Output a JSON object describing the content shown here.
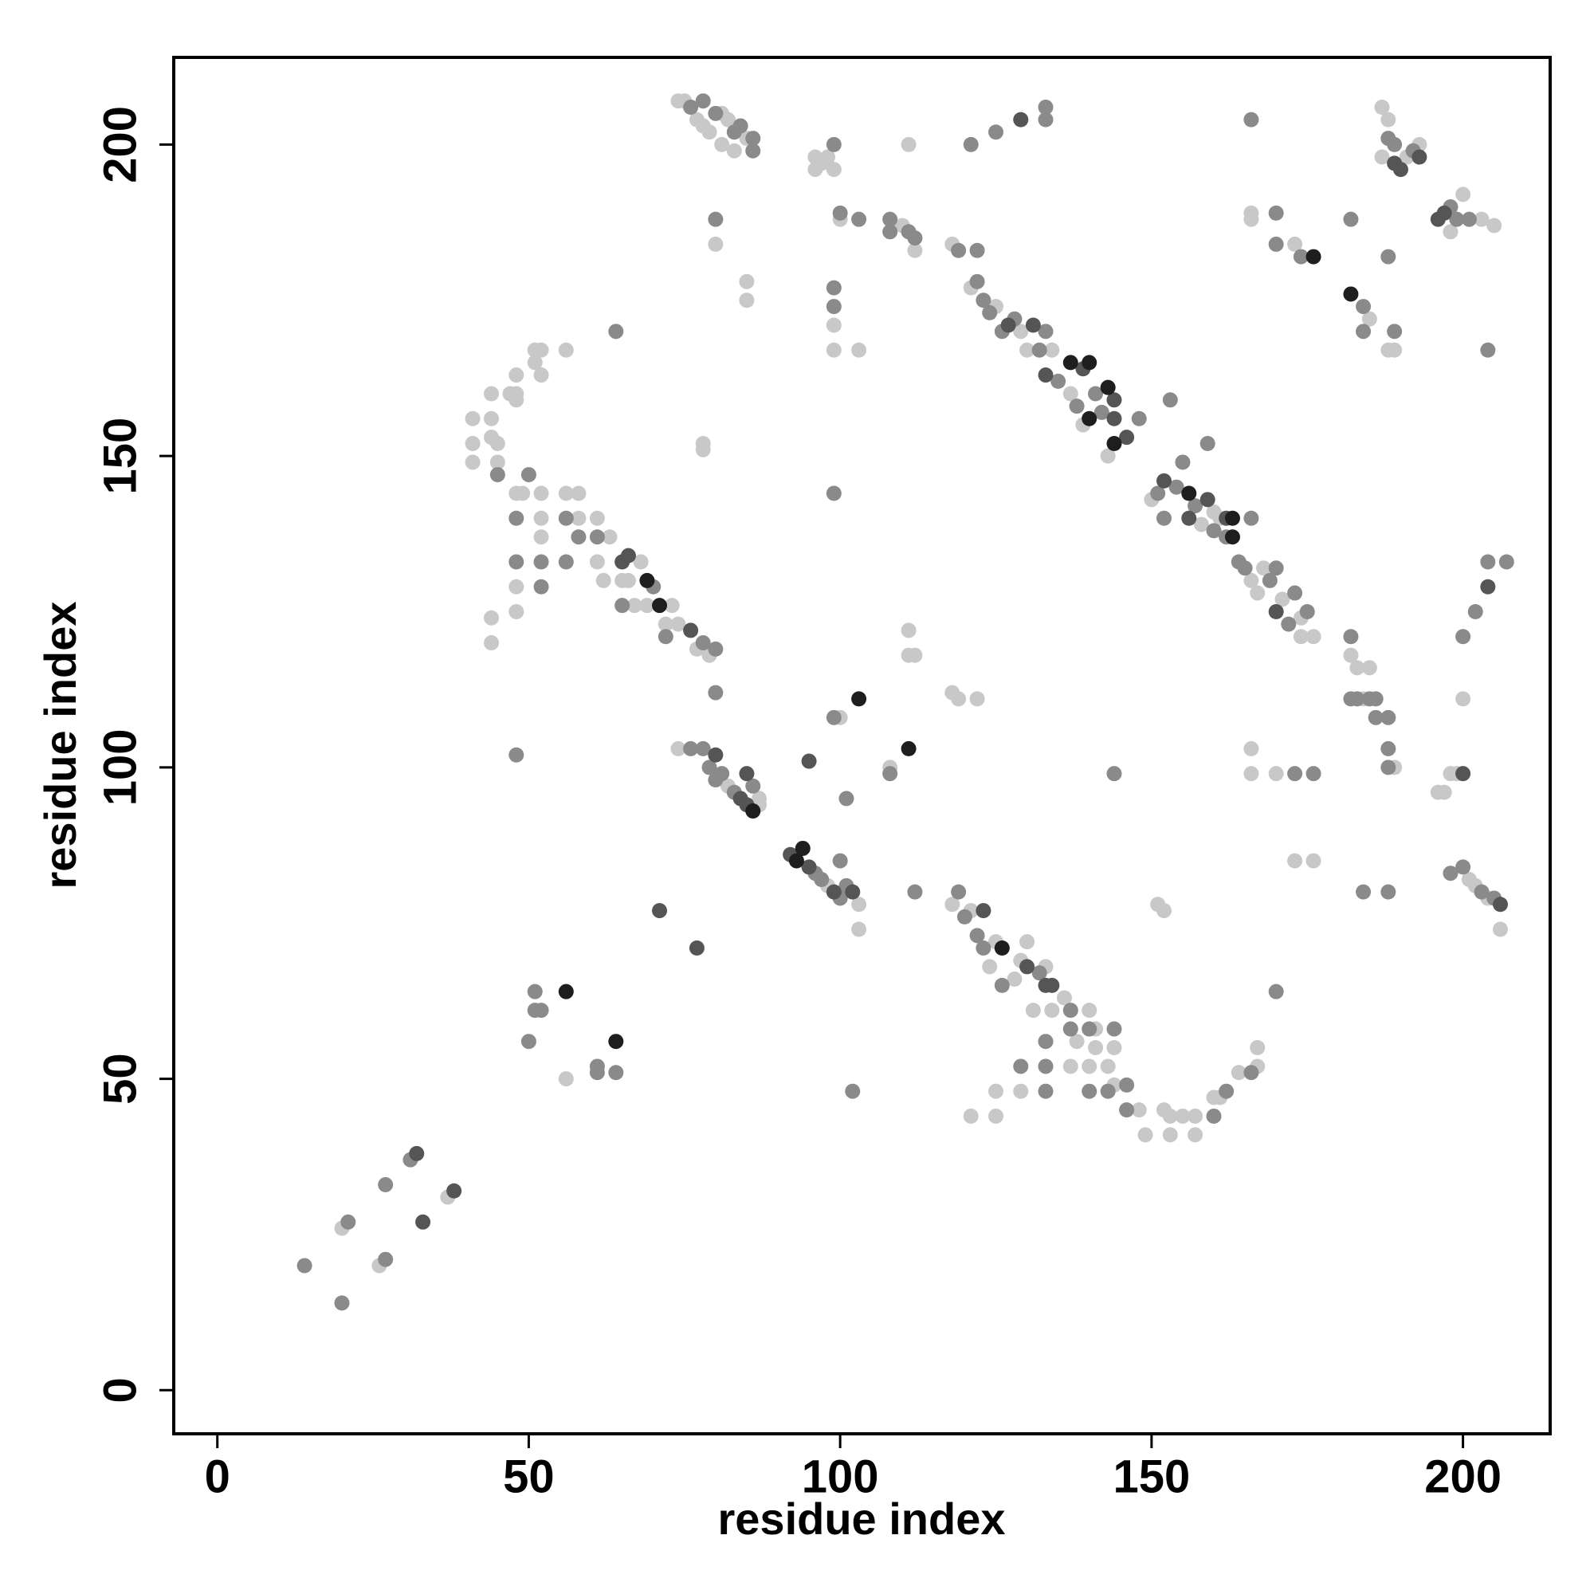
{
  "chart_data": {
    "type": "scatter",
    "x_label": "residue index",
    "y_label": "residue index",
    "xlim": [
      -7,
      214
    ],
    "ylim": [
      -7,
      214
    ],
    "xticks": [
      0,
      50,
      100,
      150,
      200
    ],
    "yticks": [
      0,
      50,
      100,
      150,
      200
    ],
    "series": [
      {
        "color": "#c8c8c8",
        "x": [
          20,
          26,
          37,
          56,
          74,
          82,
          87,
          87,
          98,
          103,
          103,
          100,
          108,
          118,
          121,
          124,
          125,
          128,
          129,
          130,
          131,
          133,
          134,
          136,
          138,
          140,
          141,
          141,
          143,
          144,
          144,
          148,
          149,
          152,
          153,
          153,
          155,
          157,
          157,
          160,
          161,
          164,
          167,
          167,
          121,
          125,
          125,
          129,
          137,
          140,
          151,
          152,
          173,
          176,
          196,
          197,
          198,
          199,
          200,
          201,
          202,
          204,
          206,
          166,
          166,
          170,
          48,
          49,
          48,
          48,
          52,
          52,
          52,
          56,
          58,
          58,
          61,
          61,
          62,
          63,
          65,
          66,
          67,
          68,
          69,
          72,
          73,
          74,
          77,
          79,
          44,
          44,
          41,
          41,
          41,
          44,
          44,
          44,
          45,
          45,
          47,
          48,
          48,
          48,
          51,
          51,
          52,
          52,
          56,
          78,
          78,
          74,
          75,
          77,
          78,
          79,
          81,
          81,
          82,
          83,
          85,
          80,
          85,
          85,
          96,
          96,
          97,
          98,
          99,
          100,
          99,
          99,
          103,
          111,
          110,
          112,
          118,
          121,
          125,
          129,
          130,
          134,
          137,
          139,
          143,
          150,
          158,
          160,
          161,
          166,
          167,
          168,
          171,
          174,
          174,
          176,
          182,
          183,
          185,
          184,
          189,
          166,
          166,
          173,
          185,
          188,
          189,
          187,
          188,
          191,
          193,
          187,
          198,
          200,
          203,
          205,
          111,
          111,
          112,
          118,
          119,
          122
        ],
        "y": [
          26,
          20,
          31,
          50,
          103,
          97,
          94,
          95,
          81,
          78,
          74,
          108,
          100,
          78,
          77,
          68,
          72,
          66,
          69,
          72,
          61,
          68,
          61,
          63,
          56,
          61,
          58,
          55,
          52,
          55,
          49,
          45,
          41,
          45,
          41,
          44,
          44,
          41,
          44,
          47,
          47,
          51,
          52,
          55,
          44,
          44,
          48,
          48,
          52,
          52,
          78,
          77,
          85,
          85,
          96,
          96,
          99,
          99,
          111,
          82,
          81,
          79,
          74,
          99,
          103,
          99,
          144,
          144,
          129,
          125,
          144,
          140,
          137,
          144,
          144,
          140,
          140,
          133,
          130,
          137,
          130,
          130,
          126,
          133,
          126,
          123,
          126,
          123,
          119,
          118,
          124,
          120,
          149,
          152,
          156,
          156,
          160,
          153,
          152,
          149,
          160,
          160,
          159,
          163,
          165,
          167,
          167,
          163,
          167,
          152,
          151,
          207,
          207,
          204,
          203,
          202,
          205,
          200,
          204,
          199,
          201,
          184,
          178,
          175,
          196,
          198,
          197,
          198,
          196,
          188,
          171,
          167,
          167,
          200,
          187,
          183,
          184,
          177,
          174,
          170,
          167,
          167,
          160,
          155,
          150,
          143,
          139,
          141,
          140,
          130,
          128,
          132,
          127,
          124,
          121,
          121,
          118,
          116,
          116,
          111,
          100,
          188,
          189,
          184,
          172,
          167,
          167,
          206,
          204,
          198,
          200,
          198,
          186,
          192,
          188,
          187,
          122,
          118,
          118,
          112,
          111,
          111
        ]
      },
      {
        "color": "#8a8a8a",
        "x": [
          14,
          20,
          21,
          27,
          27,
          31,
          50,
          51,
          51,
          52,
          61,
          61,
          64,
          76,
          78,
          79,
          80,
          81,
          83,
          86,
          96,
          97,
          100,
          100,
          101,
          101,
          99,
          108,
          112,
          119,
          120,
          122,
          123,
          126,
          132,
          137,
          137,
          140,
          144,
          146,
          146,
          160,
          162,
          166,
          170,
          129,
          133,
          133,
          133,
          140,
          143,
          102,
          184,
          188,
          198,
          200,
          203,
          205,
          173,
          176,
          144,
          48,
          50,
          48,
          48,
          52,
          52,
          56,
          56,
          58,
          61,
          65,
          70,
          72,
          78,
          80,
          80,
          45,
          64,
          99,
          76,
          78,
          80,
          83,
          84,
          86,
          86,
          80,
          99,
          100,
          103,
          99,
          99,
          108,
          108,
          111,
          112,
          119,
          122,
          121,
          125,
          133,
          133,
          122,
          123,
          124,
          126,
          128,
          132,
          133,
          135,
          138,
          141,
          142,
          148,
          151,
          152,
          153,
          154,
          155,
          157,
          159,
          160,
          162,
          164,
          165,
          166,
          169,
          170,
          172,
          173,
          175,
          182,
          182,
          183,
          185,
          186,
          186,
          188,
          188,
          188,
          170,
          170,
          174,
          182,
          184,
          184,
          188,
          189,
          166,
          188,
          189,
          192,
          198,
          199,
          201,
          204,
          204,
          207,
          202,
          200
        ],
        "y": [
          20,
          14,
          27,
          21,
          33,
          37,
          56,
          61,
          64,
          61,
          51,
          52,
          51,
          103,
          103,
          100,
          98,
          99,
          96,
          97,
          83,
          82,
          85,
          79,
          81,
          95,
          108,
          99,
          80,
          80,
          76,
          73,
          71,
          65,
          67,
          61,
          58,
          58,
          58,
          49,
          45,
          44,
          48,
          51,
          64,
          52,
          48,
          52,
          56,
          48,
          48,
          48,
          80,
          80,
          83,
          84,
          80,
          79,
          99,
          99,
          99,
          102,
          147,
          140,
          133,
          133,
          129,
          140,
          133,
          137,
          137,
          126,
          129,
          121,
          120,
          119,
          112,
          147,
          170,
          144,
          206,
          207,
          205,
          202,
          203,
          201,
          199,
          188,
          200,
          189,
          188,
          177,
          174,
          188,
          186,
          186,
          185,
          183,
          183,
          200,
          202,
          206,
          204,
          178,
          175,
          173,
          170,
          172,
          167,
          170,
          162,
          158,
          160,
          157,
          156,
          144,
          140,
          159,
          145,
          149,
          142,
          152,
          138,
          137,
          133,
          132,
          140,
          130,
          132,
          123,
          128,
          125,
          121,
          111,
          111,
          111,
          111,
          108,
          108,
          103,
          100,
          189,
          184,
          182,
          188,
          174,
          170,
          182,
          170,
          204,
          201,
          200,
          199,
          190,
          188,
          188,
          167,
          133,
          133,
          125,
          121
        ]
      },
      {
        "color": "#555555",
        "x": [
          32,
          33,
          38,
          71,
          77,
          80,
          84,
          85,
          85,
          92,
          95,
          99,
          102,
          95,
          123,
          130,
          133,
          134,
          200,
          206,
          65,
          66,
          76,
          129,
          127,
          131,
          133,
          139,
          144,
          144,
          146,
          152,
          156,
          159,
          162,
          170,
          189,
          190,
          193,
          196,
          197,
          204
        ],
        "y": [
          38,
          27,
          32,
          77,
          71,
          102,
          95,
          94,
          99,
          86,
          84,
          80,
          80,
          101,
          77,
          68,
          65,
          65,
          99,
          78,
          133,
          134,
          122,
          204,
          171,
          171,
          163,
          164,
          159,
          156,
          153,
          146,
          140,
          143,
          140,
          125,
          197,
          196,
          198,
          188,
          189,
          129
        ]
      },
      {
        "color": "#1e1e1e",
        "x": [
          56,
          64,
          86,
          93,
          94,
          103,
          111,
          126,
          69,
          71,
          137,
          140,
          140,
          143,
          144,
          156,
          163,
          163,
          176,
          182
        ],
        "y": [
          64,
          56,
          93,
          85,
          87,
          111,
          103,
          71,
          130,
          126,
          165,
          165,
          156,
          161,
          152,
          144,
          137,
          140,
          182,
          176
        ]
      }
    ]
  }
}
